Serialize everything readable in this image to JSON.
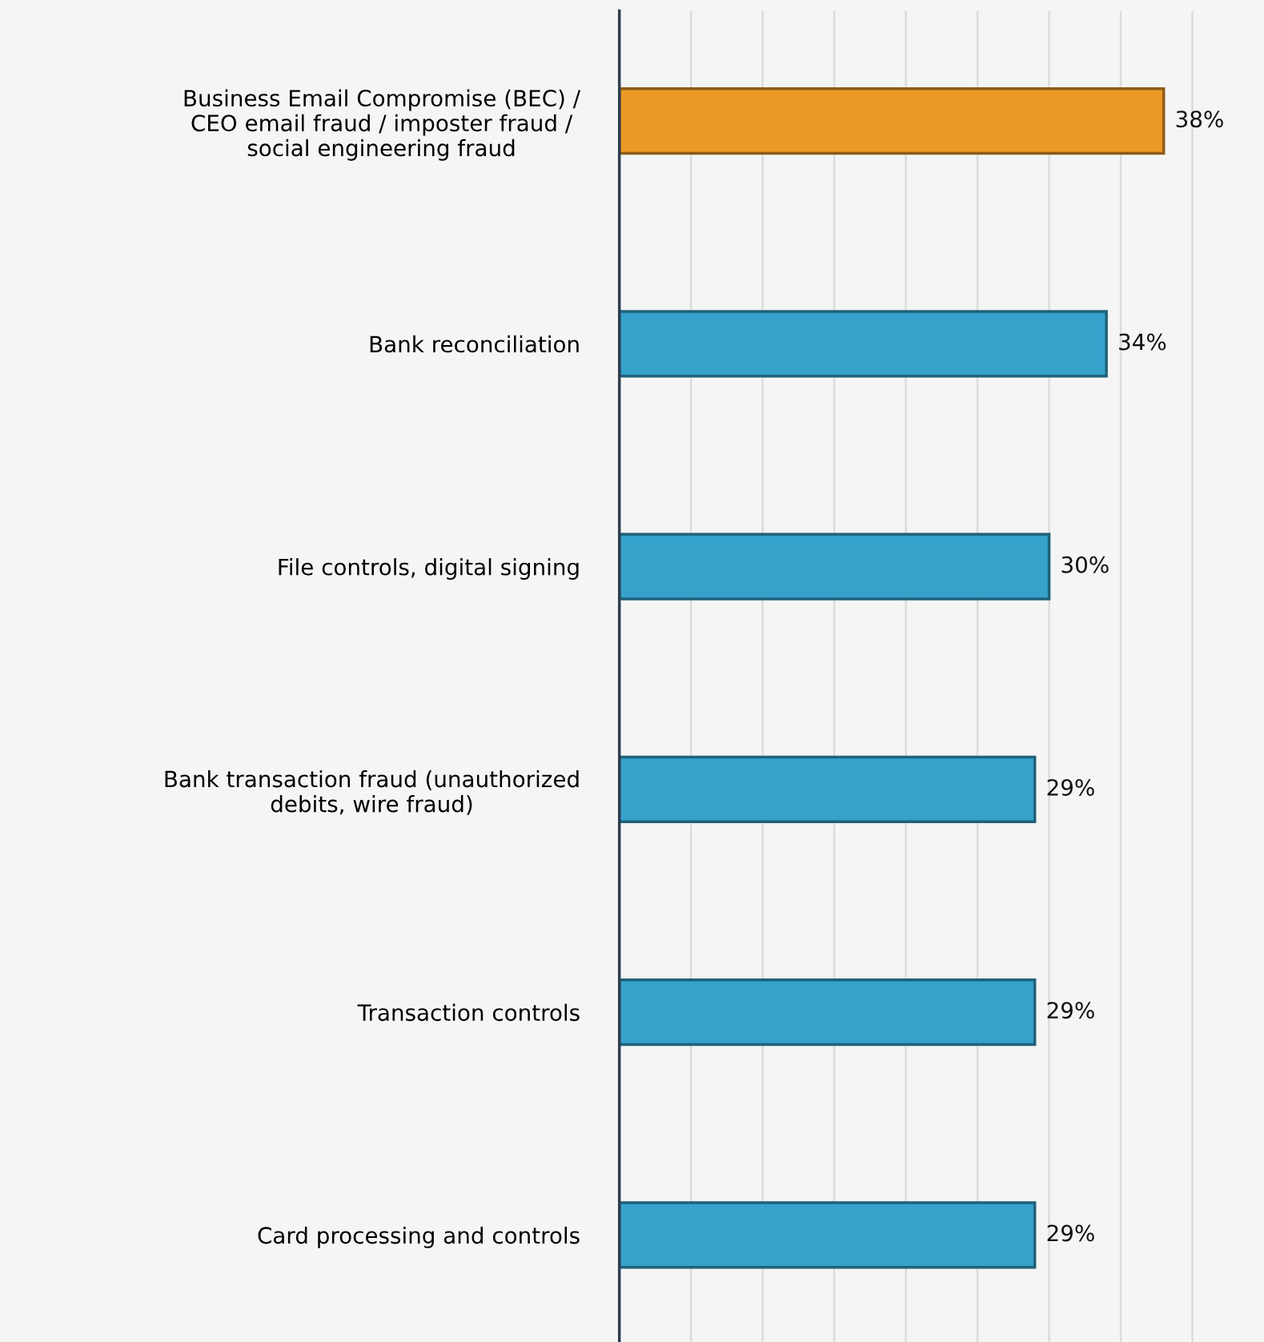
{
  "chart_data": {
    "type": "bar",
    "orientation": "horizontal",
    "categories": [
      "Business Email Compromise (BEC) /\nCEO email fraud / imposter fraud /\nsocial engineering fraud",
      "Bank reconciliation",
      "File controls, digital signing",
      "Bank transaction fraud (unauthorized\ndebits, wire fraud)",
      "Transaction controls",
      "Card processing and controls"
    ],
    "values": [
      38,
      34,
      30,
      29,
      29,
      29
    ],
    "colors": [
      "#eb9a26",
      "#35a2cc",
      "#35a2cc",
      "#35a2cc",
      "#35a2cc",
      "#35a2cc"
    ],
    "value_labels": [
      "38%",
      "34%",
      "30%",
      "29%",
      "29%",
      "29%"
    ],
    "xlim": [
      0,
      45
    ],
    "xticks": [
      {
        "value": 0,
        "label": null
      },
      {
        "value": 5,
        "label": null
      },
      {
        "value": 10,
        "label": null
      },
      {
        "value": 15,
        "label": null
      },
      {
        "value": 20,
        "label": null
      },
      {
        "value": 25,
        "label": null
      },
      {
        "value": 30,
        "label": null
      },
      {
        "value": 35,
        "label": null
      },
      {
        "value": 40,
        "label": null
      }
    ],
    "grid": "x",
    "tick_labels": "y"
  }
}
